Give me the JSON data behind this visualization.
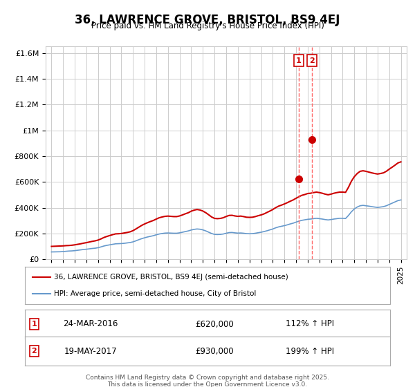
{
  "title": "36, LAWRENCE GROVE, BRISTOL, BS9 4EJ",
  "subtitle": "Price paid vs. HM Land Registry's House Price Index (HPI)",
  "title_fontsize": 13,
  "subtitle_fontsize": 10,
  "background_color": "#ffffff",
  "grid_color": "#cccccc",
  "hpi_line_color": "#6699cc",
  "price_line_color": "#cc0000",
  "marker_color": "#cc0000",
  "vline_color": "#ff6666",
  "ylabel_ticks": [
    "£0",
    "£200K",
    "£400K",
    "£600K",
    "£800K",
    "£1M",
    "£1.2M",
    "£1.4M",
    "£1.6M"
  ],
  "ytick_values": [
    0,
    200000,
    400000,
    600000,
    800000,
    1000000,
    1200000,
    1400000,
    1600000
  ],
  "ylim": [
    0,
    1650000
  ],
  "xlim_start": 1994.5,
  "xlim_end": 2025.5,
  "xtick_years": [
    1995,
    1996,
    1997,
    1998,
    1999,
    2000,
    2001,
    2002,
    2003,
    2004,
    2005,
    2006,
    2007,
    2008,
    2009,
    2010,
    2011,
    2012,
    2013,
    2014,
    2015,
    2016,
    2017,
    2018,
    2019,
    2020,
    2021,
    2022,
    2023,
    2024,
    2025
  ],
  "sale1_x": 2016.22,
  "sale1_y": 620000,
  "sale2_x": 2017.38,
  "sale2_y": 930000,
  "legend_label1": "36, LAWRENCE GROVE, BRISTOL, BS9 4EJ (semi-detached house)",
  "legend_label2": "HPI: Average price, semi-detached house, City of Bristol",
  "table_row1": [
    "1",
    "24-MAR-2016",
    "£620,000",
    "112% ↑ HPI"
  ],
  "table_row2": [
    "2",
    "19-MAY-2017",
    "£930,000",
    "199% ↑ HPI"
  ],
  "footer": "Contains HM Land Registry data © Crown copyright and database right 2025.\nThis data is licensed under the Open Government Licence v3.0.",
  "hpi_data_x": [
    1995.0,
    1995.25,
    1995.5,
    1995.75,
    1996.0,
    1996.25,
    1996.5,
    1996.75,
    1997.0,
    1997.25,
    1997.5,
    1997.75,
    1998.0,
    1998.25,
    1998.5,
    1998.75,
    1999.0,
    1999.25,
    1999.5,
    1999.75,
    2000.0,
    2000.25,
    2000.5,
    2000.75,
    2001.0,
    2001.25,
    2001.5,
    2001.75,
    2002.0,
    2002.25,
    2002.5,
    2002.75,
    2003.0,
    2003.25,
    2003.5,
    2003.75,
    2004.0,
    2004.25,
    2004.5,
    2004.75,
    2005.0,
    2005.25,
    2005.5,
    2005.75,
    2006.0,
    2006.25,
    2006.5,
    2006.75,
    2007.0,
    2007.25,
    2007.5,
    2007.75,
    2008.0,
    2008.25,
    2008.5,
    2008.75,
    2009.0,
    2009.25,
    2009.5,
    2009.75,
    2010.0,
    2010.25,
    2010.5,
    2010.75,
    2011.0,
    2011.25,
    2011.5,
    2011.75,
    2012.0,
    2012.25,
    2012.5,
    2012.75,
    2013.0,
    2013.25,
    2013.5,
    2013.75,
    2014.0,
    2014.25,
    2014.5,
    2014.75,
    2015.0,
    2015.25,
    2015.5,
    2015.75,
    2016.0,
    2016.25,
    2016.5,
    2016.75,
    2017.0,
    2017.25,
    2017.5,
    2017.75,
    2018.0,
    2018.25,
    2018.5,
    2018.75,
    2019.0,
    2019.25,
    2019.5,
    2019.75,
    2020.0,
    2020.25,
    2020.5,
    2020.75,
    2021.0,
    2021.25,
    2021.5,
    2021.75,
    2022.0,
    2022.25,
    2022.5,
    2022.75,
    2023.0,
    2023.25,
    2023.5,
    2023.75,
    2024.0,
    2024.25,
    2024.5,
    2024.75,
    2025.0
  ],
  "hpi_data_y": [
    57000,
    57500,
    58000,
    58500,
    60000,
    62000,
    64000,
    65000,
    67000,
    70000,
    73000,
    76000,
    78000,
    81000,
    84000,
    86000,
    90000,
    96000,
    103000,
    108000,
    112000,
    116000,
    120000,
    121000,
    122000,
    124000,
    127000,
    130000,
    135000,
    143000,
    152000,
    160000,
    167000,
    173000,
    178000,
    183000,
    190000,
    196000,
    200000,
    203000,
    204000,
    203000,
    202000,
    202000,
    205000,
    210000,
    215000,
    220000,
    227000,
    232000,
    235000,
    233000,
    228000,
    220000,
    210000,
    200000,
    193000,
    192000,
    193000,
    196000,
    202000,
    207000,
    208000,
    205000,
    203000,
    204000,
    202000,
    199000,
    198000,
    199000,
    202000,
    206000,
    210000,
    215000,
    221000,
    228000,
    235000,
    244000,
    251000,
    256000,
    261000,
    267000,
    274000,
    280000,
    288000,
    296000,
    302000,
    306000,
    310000,
    312000,
    315000,
    318000,
    315000,
    312000,
    308000,
    305000,
    308000,
    312000,
    315000,
    318000,
    318000,
    316000,
    340000,
    368000,
    390000,
    405000,
    415000,
    418000,
    415000,
    412000,
    408000,
    405000,
    402000,
    405000,
    408000,
    415000,
    425000,
    435000,
    445000,
    455000,
    460000
  ],
  "price_data_x": [
    1995.0,
    1995.25,
    1995.5,
    1995.75,
    1996.0,
    1996.25,
    1996.5,
    1996.75,
    1997.0,
    1997.25,
    1997.5,
    1997.75,
    1998.0,
    1998.25,
    1998.5,
    1998.75,
    1999.0,
    1999.25,
    1999.5,
    1999.75,
    2000.0,
    2000.25,
    2000.5,
    2000.75,
    2001.0,
    2001.25,
    2001.5,
    2001.75,
    2002.0,
    2002.25,
    2002.5,
    2002.75,
    2003.0,
    2003.25,
    2003.5,
    2003.75,
    2004.0,
    2004.25,
    2004.5,
    2004.75,
    2005.0,
    2005.25,
    2005.5,
    2005.75,
    2006.0,
    2006.25,
    2006.5,
    2006.75,
    2007.0,
    2007.25,
    2007.5,
    2007.75,
    2008.0,
    2008.25,
    2008.5,
    2008.75,
    2009.0,
    2009.25,
    2009.5,
    2009.75,
    2010.0,
    2010.25,
    2010.5,
    2010.75,
    2011.0,
    2011.25,
    2011.5,
    2011.75,
    2012.0,
    2012.25,
    2012.5,
    2012.75,
    2013.0,
    2013.25,
    2013.5,
    2013.75,
    2014.0,
    2014.25,
    2014.5,
    2014.75,
    2015.0,
    2015.25,
    2015.5,
    2015.75,
    2016.0,
    2016.25,
    2016.5,
    2016.75,
    2017.0,
    2017.25,
    2017.5,
    2017.75,
    2018.0,
    2018.25,
    2018.5,
    2018.75,
    2019.0,
    2019.25,
    2019.5,
    2019.75,
    2020.0,
    2020.25,
    2020.5,
    2020.75,
    2021.0,
    2021.25,
    2021.5,
    2021.75,
    2022.0,
    2022.25,
    2022.5,
    2022.75,
    2023.0,
    2023.25,
    2023.5,
    2023.75,
    2024.0,
    2024.25,
    2024.5,
    2024.75,
    2025.0
  ],
  "price_data_y": [
    100000,
    101000,
    102000,
    103000,
    104000,
    106000,
    107000,
    109000,
    112000,
    116000,
    120000,
    125000,
    129000,
    134000,
    139000,
    143000,
    149000,
    158000,
    169000,
    177000,
    184000,
    191000,
    197000,
    198000,
    200000,
    204000,
    208000,
    213000,
    222000,
    235000,
    249000,
    263000,
    274000,
    284000,
    293000,
    301000,
    312000,
    322000,
    328000,
    333000,
    335000,
    333000,
    331000,
    331000,
    336000,
    344000,
    353000,
    361000,
    373000,
    381000,
    386000,
    382000,
    374000,
    361000,
    345000,
    328000,
    317000,
    315000,
    317000,
    322000,
    332000,
    340000,
    341000,
    336000,
    333000,
    335000,
    331000,
    326000,
    325000,
    326000,
    331000,
    338000,
    344000,
    352000,
    363000,
    374000,
    386000,
    400000,
    412000,
    420000,
    429000,
    439000,
    450000,
    460000,
    473000,
    485000,
    496000,
    502000,
    510000,
    512000,
    517000,
    521000,
    517000,
    512000,
    505000,
    500000,
    505000,
    512000,
    517000,
    521000,
    521000,
    519000,
    558000,
    605000,
    640000,
    665000,
    682000,
    686000,
    682000,
    676000,
    670000,
    665000,
    661000,
    665000,
    670000,
    682000,
    699000,
    714000,
    730000,
    747000,
    755000
  ]
}
